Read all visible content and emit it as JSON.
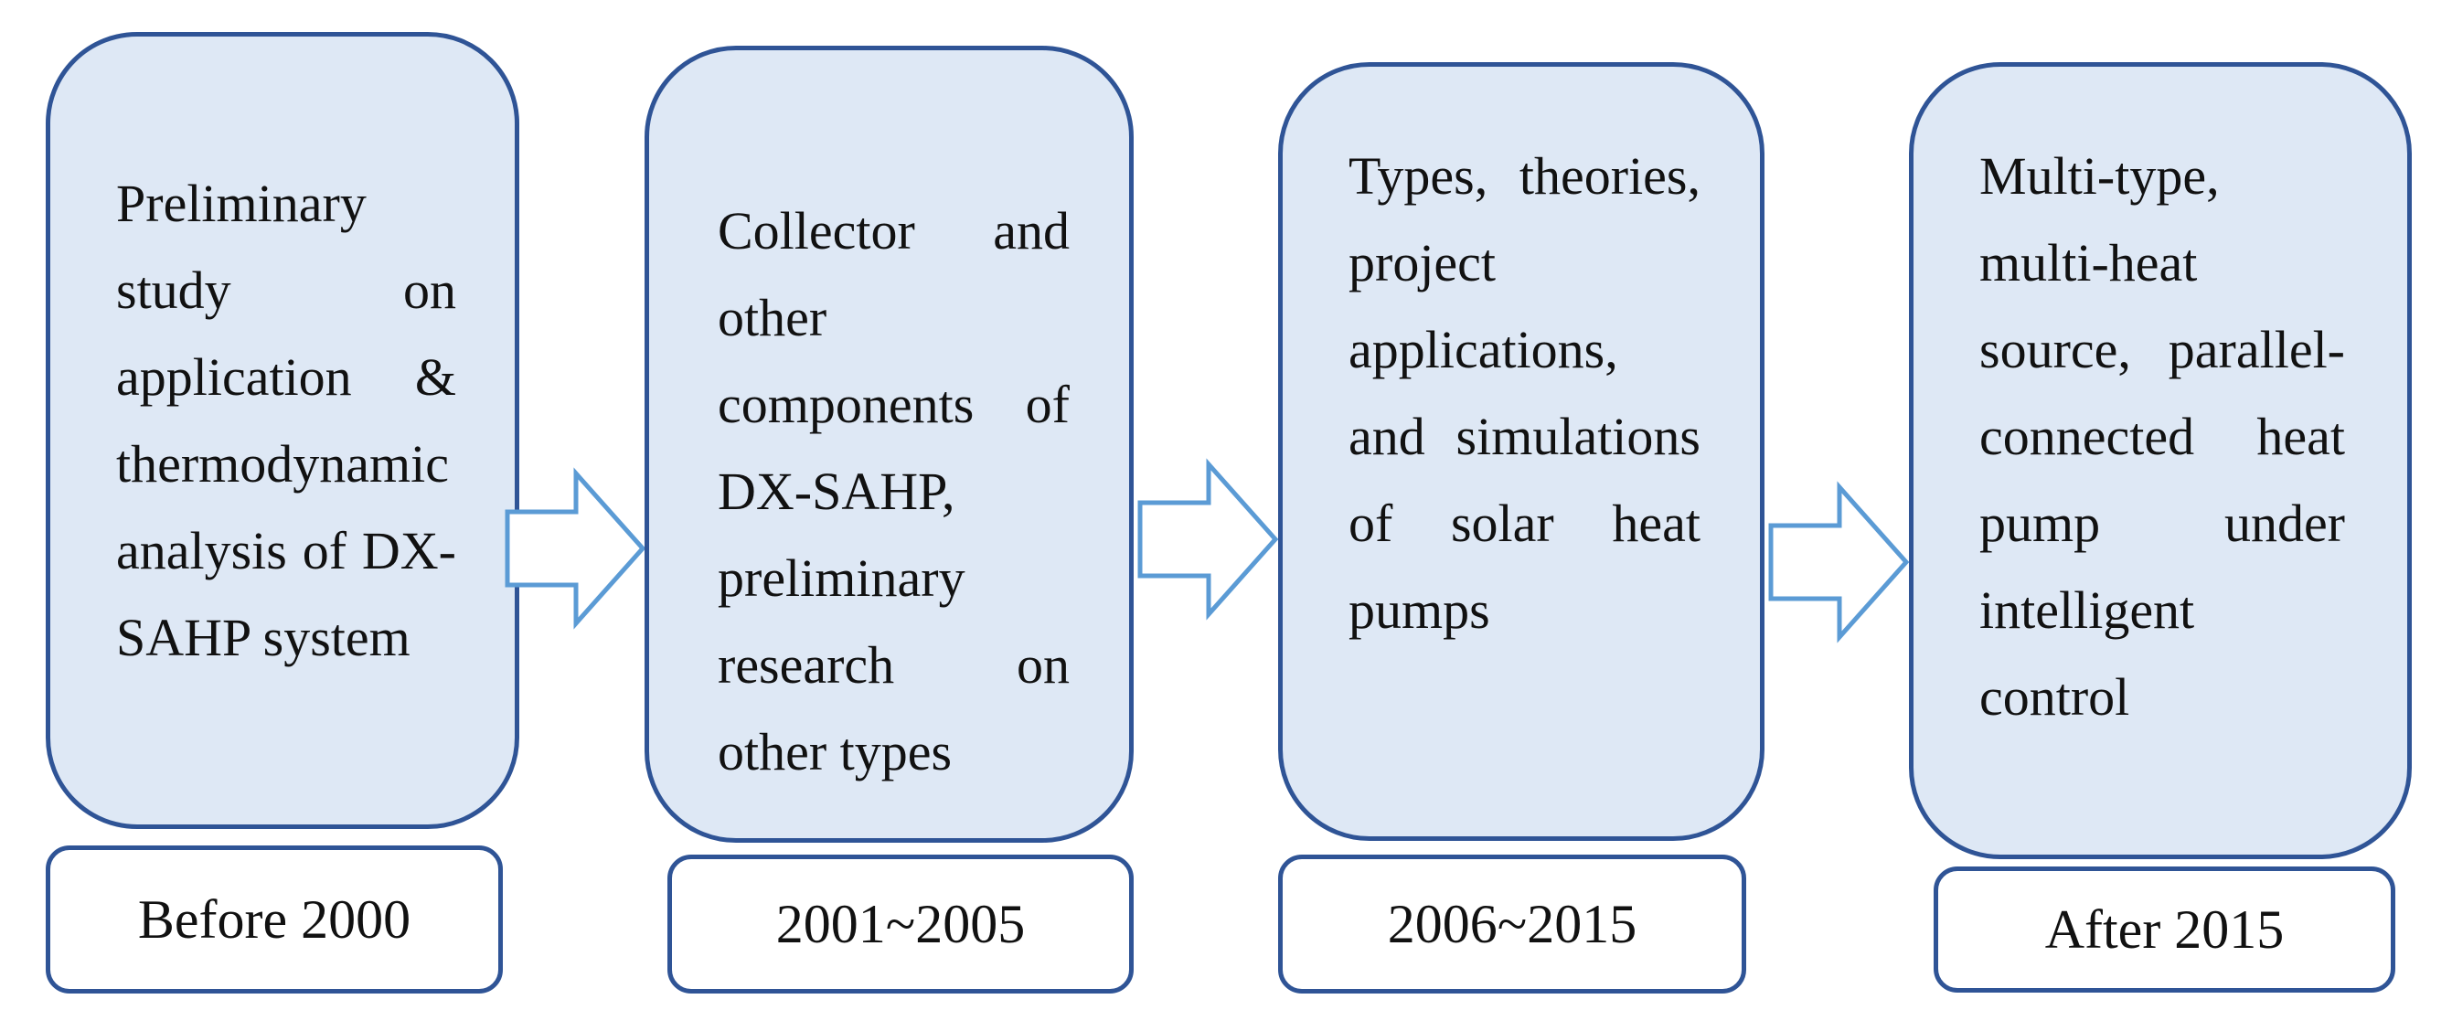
{
  "stages": [
    {
      "description": "Preliminary study on application & thermodynamic analysis of DX-SAHP system",
      "period": "Before 2000"
    },
    {
      "description": "Collector and other components of DX-SAHP, preliminary research on other types",
      "period": "2001~2005"
    },
    {
      "description": "Types, theories, project applications, and simulations of solar heat pumps",
      "period": "2006~2015"
    },
    {
      "description": "Multi-type, multi-heat source, parallel-connected heat pump under intelligent control",
      "period": "After 2015"
    }
  ],
  "colors": {
    "box_fill": "#dee8f5",
    "box_border": "#2f5496",
    "arrow_stroke": "#5b9bd5"
  }
}
